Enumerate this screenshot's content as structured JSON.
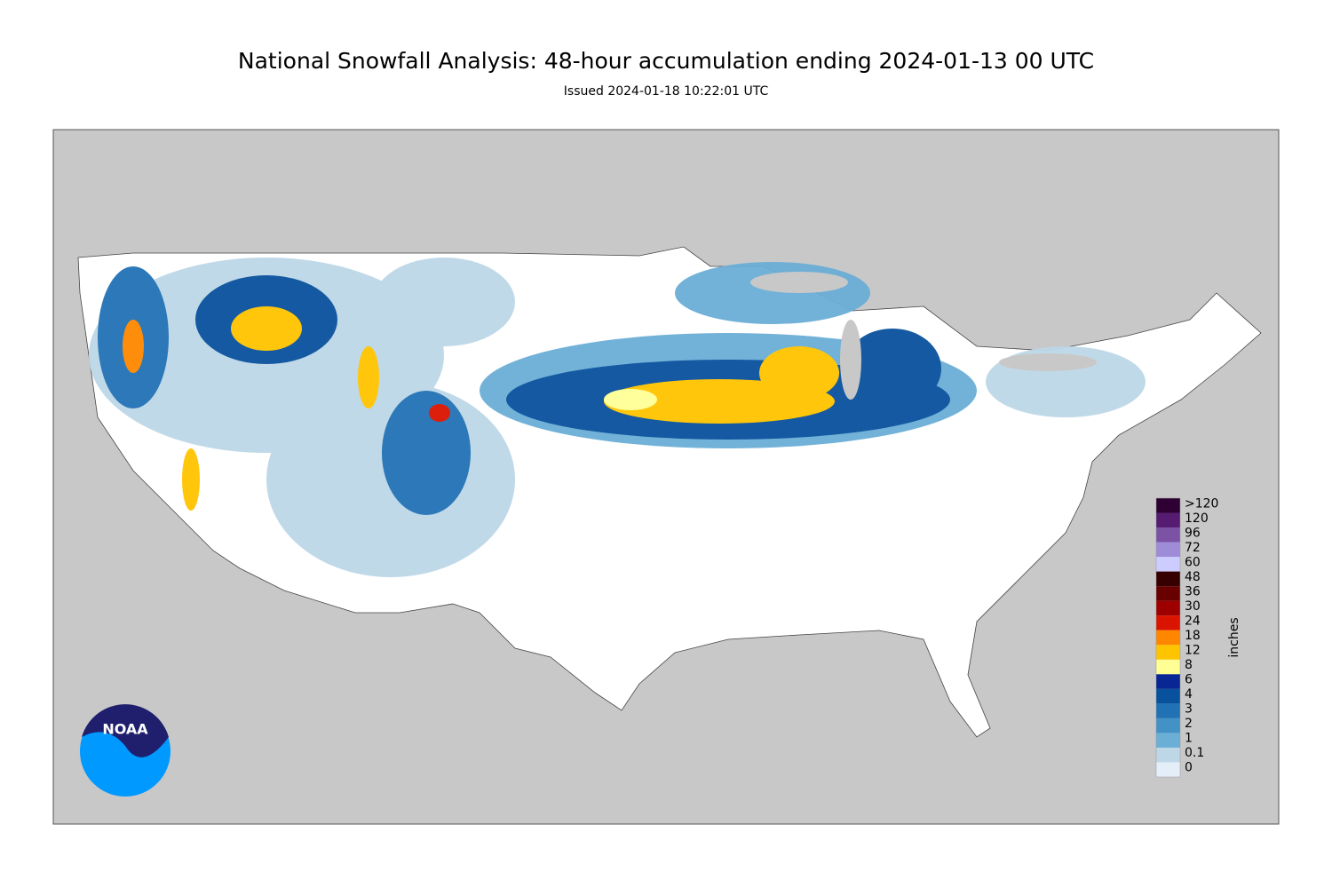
{
  "title": "National Snowfall Analysis: 48-hour accumulation ending 2024-01-13 00 UTC",
  "subtitle": "Issued 2024-01-18 10:22:01 UTC",
  "logo": "NOAA",
  "legend": {
    "unit": "inches",
    "items": [
      {
        "label": ">120",
        "color": "#2e0033"
      },
      {
        "label": "120",
        "color": "#561c72"
      },
      {
        "label": "96",
        "color": "#7c52a5"
      },
      {
        "label": "72",
        "color": "#9f8cd8"
      },
      {
        "label": "60",
        "color": "#ccccff"
      },
      {
        "label": "48",
        "color": "#360000"
      },
      {
        "label": "36",
        "color": "#690000"
      },
      {
        "label": "30",
        "color": "#9e0000"
      },
      {
        "label": "24",
        "color": "#db1400"
      },
      {
        "label": "18",
        "color": "#ff8700"
      },
      {
        "label": "12",
        "color": "#ffc400"
      },
      {
        "label": "8",
        "color": "#ffff96"
      },
      {
        "label": "6",
        "color": "#082694"
      },
      {
        "label": "4",
        "color": "#08519c"
      },
      {
        "label": "3",
        "color": "#2171b5"
      },
      {
        "label": "2",
        "color": "#4292c6"
      },
      {
        "label": "1",
        "color": "#6baed6"
      },
      {
        "label": "0.1",
        "color": "#bdd7e7"
      },
      {
        "label": "0",
        "color": "#e4eef9"
      }
    ]
  }
}
